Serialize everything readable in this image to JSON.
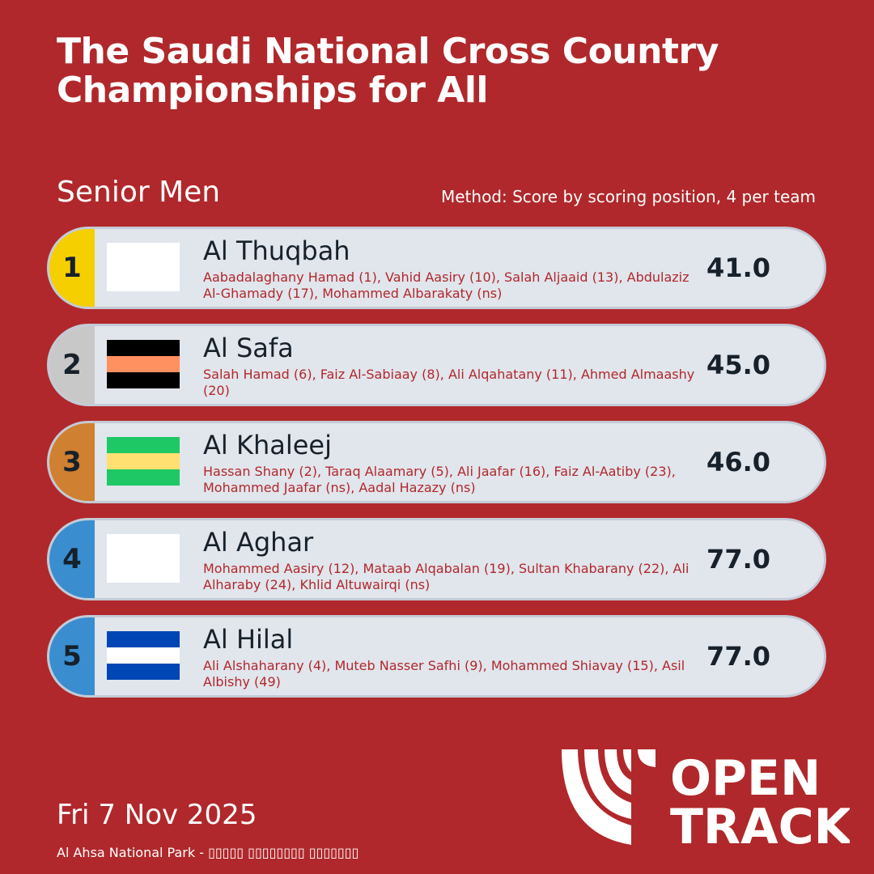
{
  "title": "The Saudi National Cross Country Championships for All",
  "category": "Senior Men",
  "method": "Method: Score by scoring position, 4 per team",
  "date": "Fri 7 Nov 2025",
  "venue": "Al Ahsa National Park - ▯▯▯▯▯ ▯▯▯▯▯▯▯▯ ▯▯▯▯▯▯▯",
  "logo": {
    "line1": "OPEN",
    "line2": "TRACK",
    "icon": "opentrack-arcs-logo"
  },
  "colors": {
    "background": "#b0282b",
    "row": "#e1e5ec",
    "text_dark": "#16212b",
    "members": "#b0282b"
  },
  "teams": [
    {
      "rank": "1",
      "name": "Al Thuqbah",
      "members": "Aabadalaghany Hamad (1), Vahid Aasiry (10), Salah Aljaaid (13), Abdulaziz Al-Ghamady (17), Mohammed Albarakaty (ns)",
      "score": "41.0",
      "rank_color": "#f5cf00",
      "flag": []
    },
    {
      "rank": "2",
      "name": "Al Safa",
      "members": "Salah Hamad (6), Faiz Al-Sabiaay (8), Ali Alqahatany (11), Ahmed Almaashy (20)",
      "score": "45.0",
      "rank_color": "#c8c8c8",
      "flag": [
        "#000000",
        "#ff9060",
        "#000000"
      ]
    },
    {
      "rank": "3",
      "name": "Al Khaleej",
      "members": "Hassan Shany (2), Taraq Alaamary (5), Ali Jaafar (16), Faiz Al-Aatiby (23), Mohammed Jaafar (ns), Aadal Hazazy (ns)",
      "score": "46.0",
      "rank_color": "#cf8030",
      "flag": [
        "#1ec864",
        "#ffe070",
        "#1ec864"
      ]
    },
    {
      "rank": "4",
      "name": "Al Aghar",
      "members": "Mohammed Aasiry (12), Mataab Alqabalan (19), Sultan Khabarany (22), Ali Alharaby (24), Khlid Altuwairqi (ns)",
      "score": "77.0",
      "rank_color": "#3a8ecf",
      "flag": []
    },
    {
      "rank": "5",
      "name": "Al Hilal",
      "members": "Ali Alshaharany (4), Muteb Nasser Safhi (9), Mohammed Shiavay (15), Asil Albishy (49)",
      "score": "77.0",
      "rank_color": "#3a8ecf",
      "flag": [
        "#0046b4",
        "#ffffff",
        "#0046b4"
      ]
    }
  ]
}
